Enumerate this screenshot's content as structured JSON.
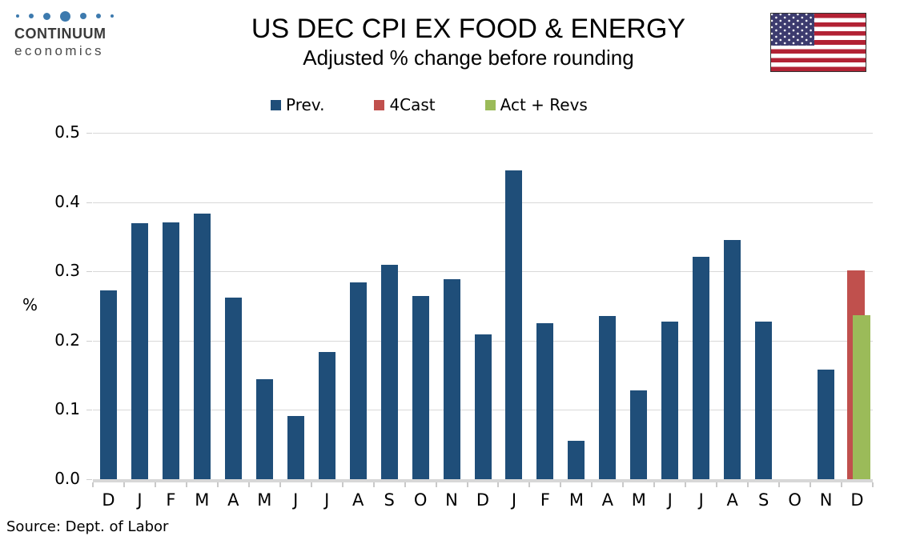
{
  "logo": {
    "brand": "CONTINUUM",
    "subbrand": "economics",
    "dot_color": "#3D7AAE"
  },
  "title": "US DEC CPI EX FOOD & ENERGY",
  "subtitle": "Adjusted % change before rounding",
  "source": "Source: Dept. of Labor",
  "flag": {
    "name": "us-flag",
    "red": "#B22234",
    "blue": "#3C3B6E"
  },
  "legend": [
    {
      "label": "Prev.",
      "color": "#1F4E79"
    },
    {
      "label": "4Cast",
      "color": "#C0504D"
    },
    {
      "label": "Act + Revs",
      "color": "#9BBB59"
    }
  ],
  "chart_data": {
    "type": "bar",
    "title": "US DEC CPI EX FOOD & ENERGY",
    "subtitle": "Adjusted % change before rounding",
    "xlabel": "",
    "ylabel": "%",
    "ylim": [
      0,
      0.5
    ],
    "yticks": [
      0.0,
      0.1,
      0.2,
      0.3,
      0.4,
      0.5
    ],
    "grid": true,
    "legend_position": "top",
    "categories": [
      "D",
      "J",
      "F",
      "M",
      "A",
      "M",
      "J",
      "J",
      "A",
      "S",
      "O",
      "N",
      "D",
      "J",
      "F",
      "M",
      "A",
      "M",
      "J",
      "J",
      "A",
      "S",
      "O",
      "N",
      "D"
    ],
    "series": [
      {
        "name": "Prev.",
        "color": "#1F4E79",
        "values": [
          0.273,
          0.37,
          0.371,
          0.383,
          0.262,
          0.144,
          0.091,
          0.184,
          0.284,
          0.31,
          0.264,
          0.289,
          0.209,
          0.446,
          0.225,
          0.056,
          0.236,
          0.128,
          0.228,
          0.321,
          0.345,
          0.227,
          null,
          0.158,
          null
        ]
      },
      {
        "name": "4Cast",
        "color": "#C0504D",
        "values": [
          null,
          null,
          null,
          null,
          null,
          null,
          null,
          null,
          null,
          null,
          null,
          null,
          null,
          null,
          null,
          null,
          null,
          null,
          null,
          null,
          null,
          null,
          null,
          null,
          0.301
        ]
      },
      {
        "name": "Act + Revs",
        "color": "#9BBB59",
        "values": [
          null,
          null,
          null,
          null,
          null,
          null,
          null,
          null,
          null,
          null,
          null,
          null,
          null,
          null,
          null,
          null,
          null,
          null,
          null,
          null,
          null,
          null,
          null,
          null,
          0.237
        ]
      }
    ]
  }
}
